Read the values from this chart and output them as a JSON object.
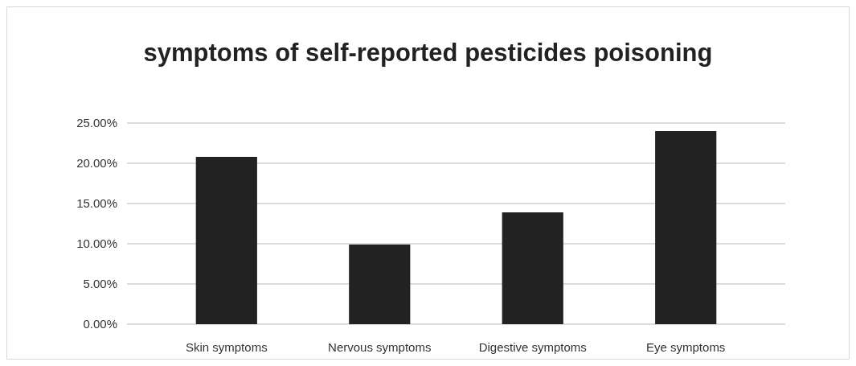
{
  "chart_data": {
    "type": "bar",
    "title": "symptoms of self-reported pesticides poisoning",
    "categories": [
      "Skin symptoms",
      "Nervous symptoms",
      "Digestive symptoms",
      "Eye symptoms"
    ],
    "values": [
      20.8,
      9.9,
      13.9,
      24
    ],
    "color": "#222222",
    "ylim": [
      0,
      25
    ],
    "yticks": [
      {
        "value": 0,
        "label": "0.00%"
      },
      {
        "value": 5,
        "label": "5.00%"
      },
      {
        "value": 10,
        "label": "10.00%"
      },
      {
        "value": 15,
        "label": "15.00%"
      },
      {
        "value": 20,
        "label": "20.00%"
      },
      {
        "value": 25,
        "label": "25.00%"
      }
    ],
    "grid": true
  }
}
